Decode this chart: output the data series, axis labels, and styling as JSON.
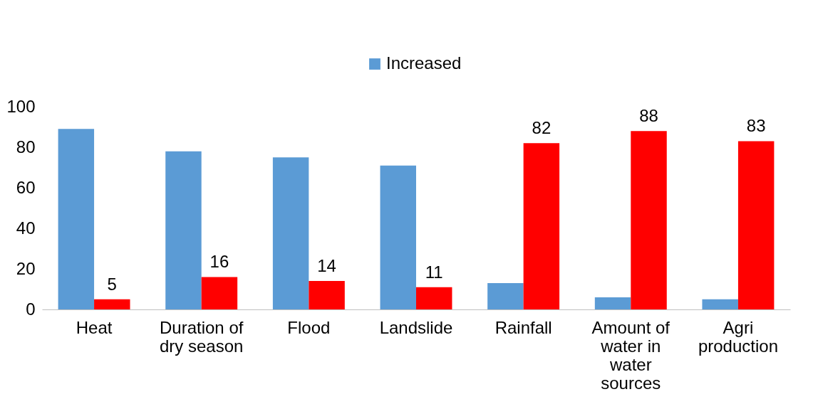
{
  "chart_data": {
    "type": "bar",
    "categories": [
      "Heat",
      "Duration of dry season",
      "Flood",
      "Landslide",
      "Rainfall",
      "Amount of water in water sources",
      "Agri production"
    ],
    "series": [
      {
        "name": "Increased",
        "color": "#5b9bd5",
        "values": [
          89,
          78,
          75,
          71,
          13,
          6,
          5
        ]
      },
      {
        "color": "#ff0000",
        "values": [
          5,
          16,
          14,
          11,
          82,
          88,
          83
        ],
        "value_labels": [
          "5",
          "16",
          "14",
          "11",
          "82",
          "88",
          "83"
        ]
      }
    ],
    "ylim": [
      0,
      100
    ],
    "yticks": [
      0,
      20,
      40,
      60,
      80,
      100
    ],
    "grid": false,
    "legend": "top"
  }
}
